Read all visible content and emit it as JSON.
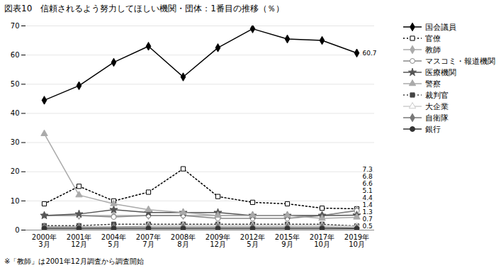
{
  "chart_data": {
    "type": "line",
    "title": "図表10　信頼されるよう努力してほしい機関・団体：1番目の推移（％）",
    "caption": "※「教師」は2001年12月調査から調査開始",
    "categories": [
      "2000年\n3月",
      "2001年\n12月",
      "2004年\n5月",
      "2007年\n7月",
      "2008年\n8月",
      "2009年\n12月",
      "2012年\n5月",
      "2015年\n9月",
      "2017年\n10月",
      "2019年\n10月"
    ],
    "series": [
      {
        "name": "国会議員",
        "color": "#000000",
        "marker": "diamond",
        "line_style": "solid",
        "values": [
          44.5,
          49.5,
          57.5,
          63.0,
          52.5,
          62.5,
          69.0,
          65.5,
          65.0,
          60.7
        ]
      },
      {
        "name": "官僚",
        "color": "#000000",
        "marker": "square-open",
        "line_style": "dotted",
        "values": [
          9.0,
          15.0,
          10.0,
          13.0,
          21.0,
          11.5,
          9.5,
          9.0,
          7.5,
          7.3
        ]
      },
      {
        "name": "教師",
        "color": "#aaaaaa",
        "marker": "diamond",
        "line_style": "solid",
        "values": [
          null,
          5.0,
          5.0,
          5.0,
          5.0,
          5.0,
          5.0,
          5.0,
          5.0,
          6.8
        ]
      },
      {
        "name": "マスコミ・報道機関",
        "color": "#888888",
        "marker": "circle-open",
        "line_style": "solid",
        "values": [
          5.0,
          5.0,
          4.5,
          5.0,
          5.0,
          4.0,
          4.0,
          4.0,
          5.0,
          6.6
        ]
      },
      {
        "name": "医療機関",
        "color": "#555555",
        "marker": "star",
        "line_style": "solid",
        "values": [
          5.0,
          5.5,
          7.0,
          6.0,
          6.0,
          6.0,
          5.0,
          5.0,
          5.0,
          5.1
        ]
      },
      {
        "name": "警察",
        "color": "#aaaaaa",
        "marker": "triangle",
        "line_style": "solid",
        "values": [
          33.0,
          12.0,
          9.0,
          7.0,
          6.0,
          5.0,
          5.0,
          5.0,
          4.0,
          4.4
        ]
      },
      {
        "name": "裁判官",
        "color": "#444444",
        "marker": "square",
        "line_style": "dotted",
        "values": [
          1.5,
          1.5,
          2.0,
          2.0,
          2.0,
          2.0,
          2.0,
          2.0,
          2.0,
          1.4
        ]
      },
      {
        "name": "大企業",
        "color": "#cccccc",
        "marker": "triangle-open",
        "line_style": "solid",
        "values": [
          1.0,
          1.0,
          1.0,
          1.5,
          1.5,
          1.5,
          1.5,
          1.5,
          1.5,
          1.3
        ]
      },
      {
        "name": "自衛隊",
        "color": "#777777",
        "marker": "diamond",
        "line_style": "solid",
        "values": [
          1.0,
          1.0,
          1.0,
          1.0,
          1.0,
          1.0,
          1.0,
          1.0,
          1.0,
          0.7
        ]
      },
      {
        "name": "銀行",
        "color": "#333333",
        "marker": "circle",
        "line_style": "solid",
        "values": [
          0.5,
          0.5,
          0.5,
          0.5,
          0.5,
          0.5,
          0.5,
          0.5,
          0.5,
          0.5
        ]
      }
    ],
    "ylim": [
      0,
      70
    ],
    "yticks": [
      0,
      10,
      20,
      30,
      40,
      50,
      60,
      70
    ],
    "grid": true,
    "legend": "right",
    "annotations": [
      {
        "text": "60.7",
        "x": "2019年\n10月",
        "y": 60.7
      },
      {
        "text": "7.3",
        "x": "2019年\n10月",
        "y": 7.3
      },
      {
        "text": "6.8",
        "x": "2019年\n10月",
        "y": 6.8
      },
      {
        "text": "6.6",
        "x": "2019年\n10月",
        "y": 6.6
      },
      {
        "text": "5.1",
        "x": "2019年\n10月",
        "y": 5.1
      },
      {
        "text": "4.4",
        "x": "2019年\n10月",
        "y": 4.4
      },
      {
        "text": "1.4",
        "x": "2019年\n10月",
        "y": 1.4
      },
      {
        "text": "1.3",
        "x": "2019年\n10月",
        "y": 1.3
      },
      {
        "text": "0.7",
        "x": "2019年\n10月",
        "y": 0.7
      },
      {
        "text": "0.5",
        "x": "2019年\n10月",
        "y": 0.5
      }
    ]
  }
}
